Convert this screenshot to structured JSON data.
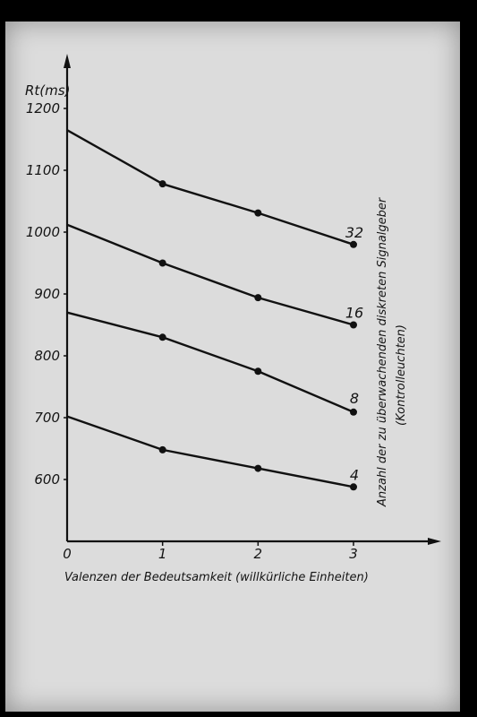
{
  "chart_data": {
    "type": "line",
    "ylabel": "Rt(ms)",
    "xlabel": "Valenzen der Bedeutsamkeit (willkürliche Einheiten)",
    "legend_title": "Anzahl der zu überwachenden diskreten Signalgeber",
    "legend_subtitle": "(Kontrolleuchten)",
    "x": [
      0,
      1,
      2,
      3
    ],
    "x_ticks": [
      "0",
      "1",
      "2",
      "3"
    ],
    "y_ticks": [
      "600",
      "700",
      "800",
      "900",
      "1000",
      "1100",
      "1200"
    ],
    "xlim": [
      0,
      3.8
    ],
    "ylim": [
      520,
      1290
    ],
    "grid": false,
    "legend_placement": "right",
    "series": [
      {
        "name": "32",
        "values": [
          1165,
          1078,
          1031,
          980
        ]
      },
      {
        "name": "16",
        "values": [
          1012,
          950,
          894,
          850
        ]
      },
      {
        "name": "8",
        "values": [
          870,
          830,
          775,
          709
        ]
      },
      {
        "name": "4",
        "values": [
          702,
          648,
          618,
          588
        ]
      }
    ]
  }
}
